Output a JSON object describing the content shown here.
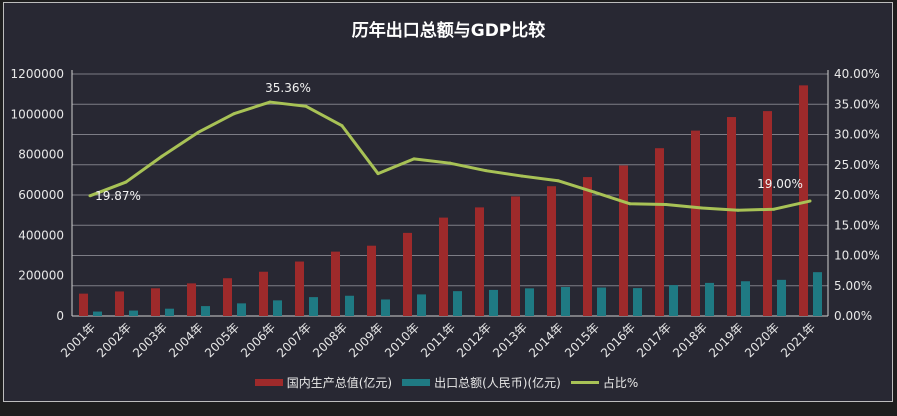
{
  "title": "历年出口总额与GDP比较",
  "chart_data": {
    "type": "bar+line",
    "title": "历年出口总额与GDP比较",
    "categories": [
      "2001年",
      "2002年",
      "2003年",
      "2004年",
      "2005年",
      "2006年",
      "2007年",
      "2008年",
      "2009年",
      "2010年",
      "2011年",
      "2012年",
      "2013年",
      "2014年",
      "2015年",
      "2016年",
      "2017年",
      "2018年",
      "2019年",
      "2020年",
      "2021年"
    ],
    "series": [
      {
        "name": "国内生产总值(亿元)",
        "type": "bar",
        "axis": "left",
        "color": "#9e2a2b",
        "values": [
          110863,
          121717,
          137422,
          161840,
          187319,
          219439,
          270092,
          319245,
          348518,
          412119,
          487940,
          538580,
          592963,
          643563,
          688858,
          746395,
          832036,
          919281,
          986515,
          1015986,
          1143670
        ]
      },
      {
        "name": "出口总额(人民币)(亿元)",
        "type": "bar",
        "axis": "left",
        "color": "#1f7a83",
        "values": [
          22024,
          26948,
          36288,
          49103,
          62648,
          77597,
          93627,
          100395,
          82030,
          107023,
          123241,
          129359,
          137131,
          143884,
          141167,
          138419,
          153309,
          164129,
          172374,
          179326,
          217348
        ]
      },
      {
        "name": "占比%",
        "type": "line",
        "axis": "right",
        "color": "#a8c256",
        "values": [
          19.87,
          22.14,
          26.41,
          30.34,
          33.44,
          35.36,
          34.66,
          31.45,
          23.54,
          25.97,
          25.26,
          24.02,
          23.13,
          22.36,
          20.49,
          18.55,
          18.43,
          17.85,
          17.47,
          17.65,
          19.0
        ]
      }
    ],
    "data_labels": [
      {
        "index": 0,
        "text": "19.87%"
      },
      {
        "index": 5,
        "text": "35.36%"
      },
      {
        "index": 20,
        "text": "19.00%"
      }
    ],
    "y_left": {
      "ylim": [
        0,
        1200000
      ],
      "ticks": [
        "0",
        "200000",
        "400000",
        "600000",
        "800000",
        "1000000",
        "1200000"
      ]
    },
    "y_right": {
      "ylim": [
        0,
        40
      ],
      "ticks": [
        "0.00%",
        "5.00%",
        "10.00%",
        "15.00%",
        "20.00%",
        "25.00%",
        "30.00%",
        "35.00%",
        "40.00%"
      ]
    },
    "grid": true,
    "legend": "bottom"
  }
}
